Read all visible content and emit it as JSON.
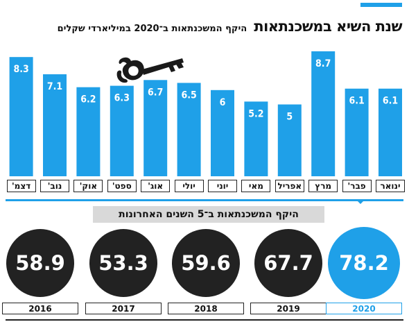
{
  "title": {
    "main": "שנת השיא במשכנתאות",
    "subtitle": "היקף המשכנתאות ב־2020 במיליארדי שקלים"
  },
  "section_label": "היקף המשכנתאות ב־5 השנים האחרונות",
  "colors": {
    "accent": "#1fa0e8",
    "dark": "#222222",
    "label_bg": "#d9d9d9"
  },
  "icons": [
    "key-icon"
  ],
  "chart_data": [
    {
      "type": "bar",
      "title": "היקף המשכנתאות ב־2020 במיליארדי שקלים",
      "categories": [
        "ינואר",
        "פבר'",
        "מרץ",
        "אפריל",
        "מאי",
        "יוני",
        "יולי",
        "אוג'",
        "ספט'",
        "אוק'",
        "נוב'",
        "דצמ'"
      ],
      "values": [
        6.1,
        6.1,
        8.7,
        5,
        5.2,
        6,
        6.5,
        6.7,
        6.3,
        6.2,
        7.1,
        8.3
      ],
      "value_labels": [
        "6.1",
        "6.1",
        "8.7",
        "5",
        "5.2",
        "6",
        "6.5",
        "6.7",
        "6.3",
        "6.2",
        "7.1",
        "8.3"
      ],
      "category_order": "right-to-left",
      "grid": false,
      "legend": "none"
    },
    {
      "type": "bubble-row",
      "title": "היקף המשכנתאות ב־5 השנים האחרונות",
      "categories": [
        "2016",
        "2017",
        "2018",
        "2019",
        "2020"
      ],
      "values": [
        58.9,
        53.3,
        59.6,
        67.7,
        78.2
      ],
      "value_labels": [
        "58.9",
        "53.3",
        "59.6",
        "67.7",
        "78.2"
      ],
      "highlight": "2020"
    }
  ]
}
